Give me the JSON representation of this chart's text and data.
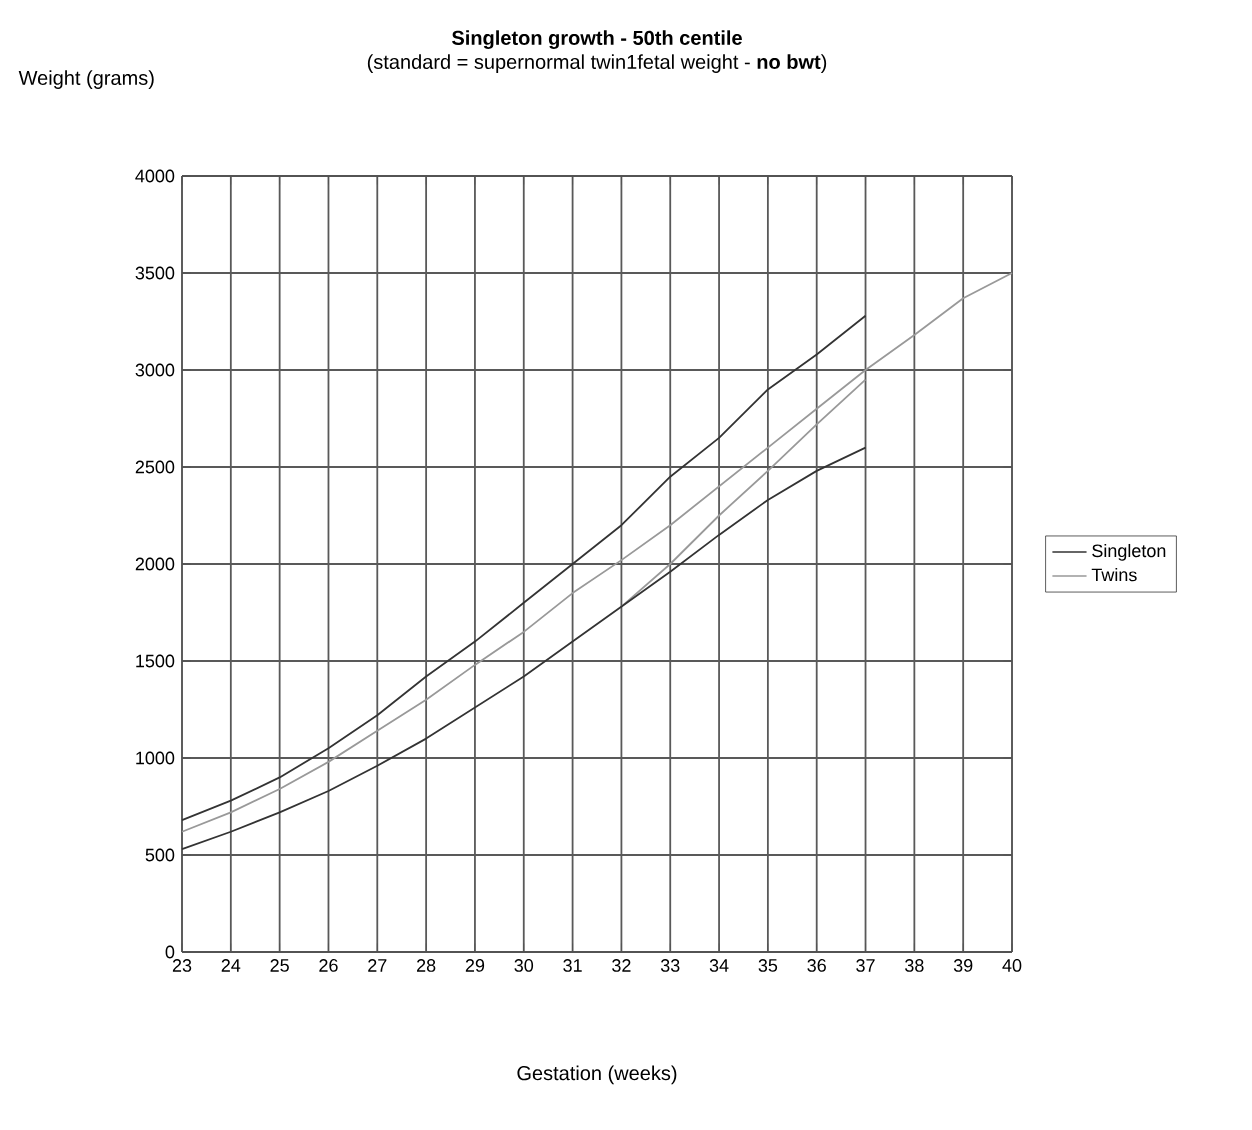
{
  "chart_data": {
    "type": "line",
    "title": "Singleton growth - 50th centile",
    "subtitle": "(standard = supernormal twin1fetal weight - **no bwt**)",
    "xlabel": "Gestation (weeks)",
    "ylabel": "Weight (grams)",
    "xlim": [
      23,
      40
    ],
    "xticks": [
      23,
      24,
      25,
      26,
      27,
      28,
      29,
      30,
      31,
      32,
      33,
      34,
      35,
      36,
      37,
      38,
      39,
      40
    ],
    "ylim": [
      0,
      4000
    ],
    "yticks": [
      0,
      500,
      1000,
      1500,
      2000,
      2500,
      3000,
      3500,
      4000
    ],
    "grid": true,
    "legend": "right",
    "marker": "none",
    "line_style": "solid",
    "series": [
      {
        "name": "Singleton",
        "color": "#333333",
        "x": [
          23,
          24,
          25,
          26,
          27,
          28,
          29,
          30,
          31,
          32,
          33,
          34,
          35,
          36,
          37
        ],
        "values": [
          680,
          780,
          900,
          1050,
          1220,
          1420,
          1600,
          1800,
          2000,
          2200,
          2450,
          2650,
          2900,
          3080,
          3280
        ]
      },
      {
        "name": "Twins",
        "color": "#999999",
        "x": [
          23,
          24,
          25,
          26,
          27,
          28,
          29,
          30,
          31,
          32,
          33,
          34,
          35,
          36,
          37,
          38,
          39,
          40
        ],
        "values": [
          620,
          720,
          840,
          980,
          1140,
          1300,
          1480,
          1650,
          1850,
          2020,
          2200,
          2400,
          2600,
          2800,
          3000,
          3180,
          3370,
          3500
        ]
      },
      {
        "color": "#999999",
        "x": [
          32,
          33,
          34,
          35,
          36,
          37
        ],
        "values": [
          1780,
          2000,
          2250,
          2480,
          2720,
          2950
        ]
      },
      {
        "color": "#333333",
        "x": [
          23,
          24,
          25,
          26,
          27,
          28,
          29,
          30,
          31,
          32,
          33,
          34,
          35,
          36,
          37
        ],
        "values": [
          530,
          620,
          720,
          830,
          960,
          1100,
          1260,
          1420,
          1600,
          1780,
          1960,
          2150,
          2330,
          2480,
          2600
        ]
      }
    ]
  }
}
